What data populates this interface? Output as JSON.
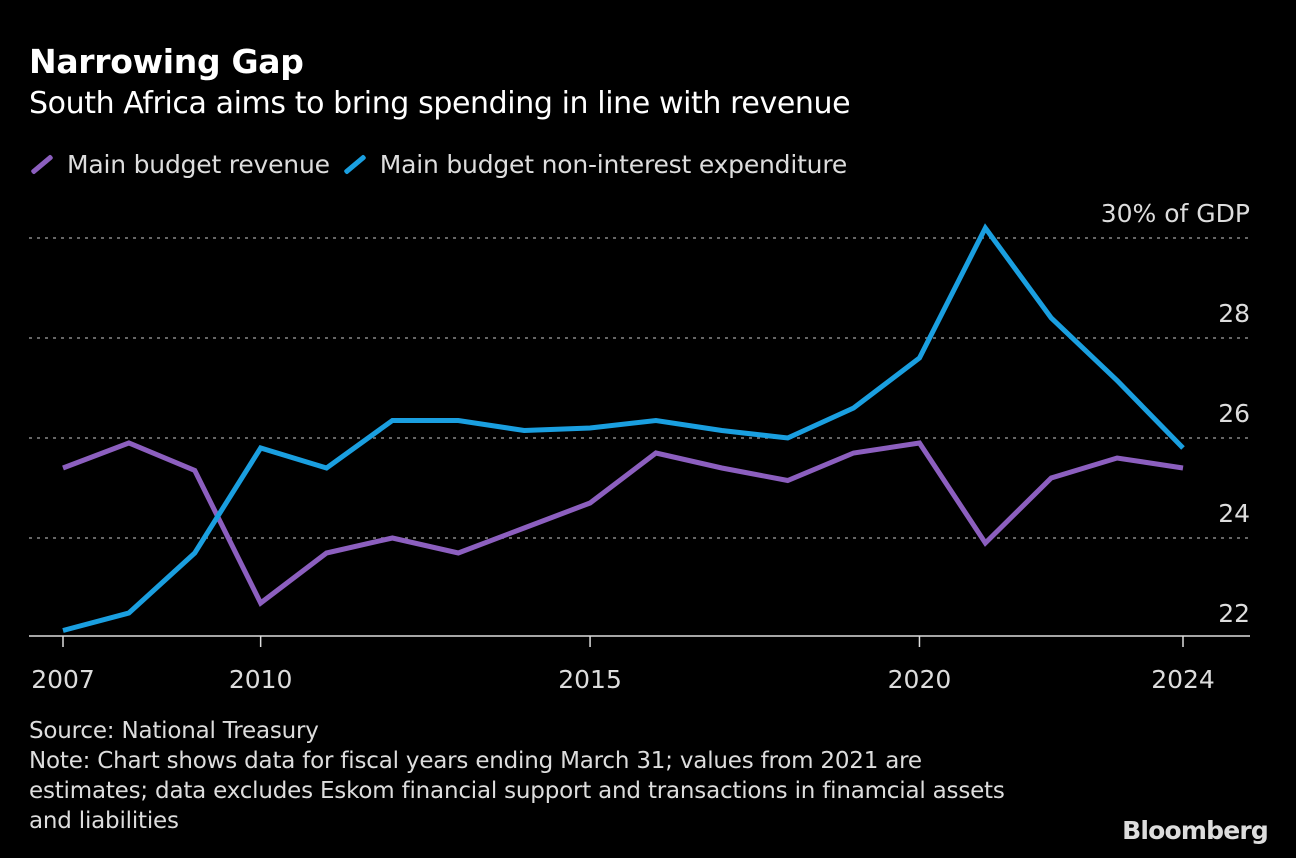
{
  "chart_data": {
    "type": "line",
    "title": "Narrowing Gap",
    "subtitle": "South Africa aims to bring spending in line with revenue",
    "x": [
      2007,
      2008,
      2009,
      2010,
      2011,
      2012,
      2013,
      2014,
      2015,
      2016,
      2017,
      2018,
      2019,
      2020,
      2021,
      2022,
      2023,
      2024
    ],
    "series": [
      {
        "name": "Main budget revenue",
        "color": "#8c5fbf",
        "values": [
          25.4,
          25.9,
          25.35,
          22.7,
          23.7,
          24.0,
          23.7,
          24.2,
          24.7,
          25.7,
          25.4,
          25.15,
          25.7,
          25.9,
          23.9,
          25.2,
          25.6,
          25.4
        ]
      },
      {
        "name": "Main budget non-interest expenditure",
        "color": "#1a9fe0",
        "values": [
          22.15,
          22.5,
          23.7,
          25.8,
          25.4,
          26.35,
          26.35,
          26.15,
          26.2,
          26.35,
          26.15,
          26.0,
          26.6,
          27.6,
          30.2,
          28.4,
          27.15,
          25.8
        ]
      }
    ],
    "xticks": [
      2007,
      2010,
      2015,
      2020,
      2024
    ],
    "xtick_labels": [
      "2007",
      "2010",
      "2015",
      "2020",
      "2024"
    ],
    "yticks": [
      22,
      24,
      26,
      28,
      30
    ],
    "ytick_labels": [
      "22",
      "24",
      "26",
      "28",
      "30% of GDP"
    ],
    "xlim": [
      2007,
      2024
    ],
    "ylim": [
      22,
      30
    ],
    "grid": "horizontal dotted",
    "legend": "top-left"
  },
  "footer": {
    "source": "Source: National Treasury",
    "note": "Note: Chart shows data for fiscal years ending March 31; values from 2021 are estimates; data excludes Eskom financial support and transactions in finamcial assets and liabilities"
  },
  "brand": "Bloomberg"
}
